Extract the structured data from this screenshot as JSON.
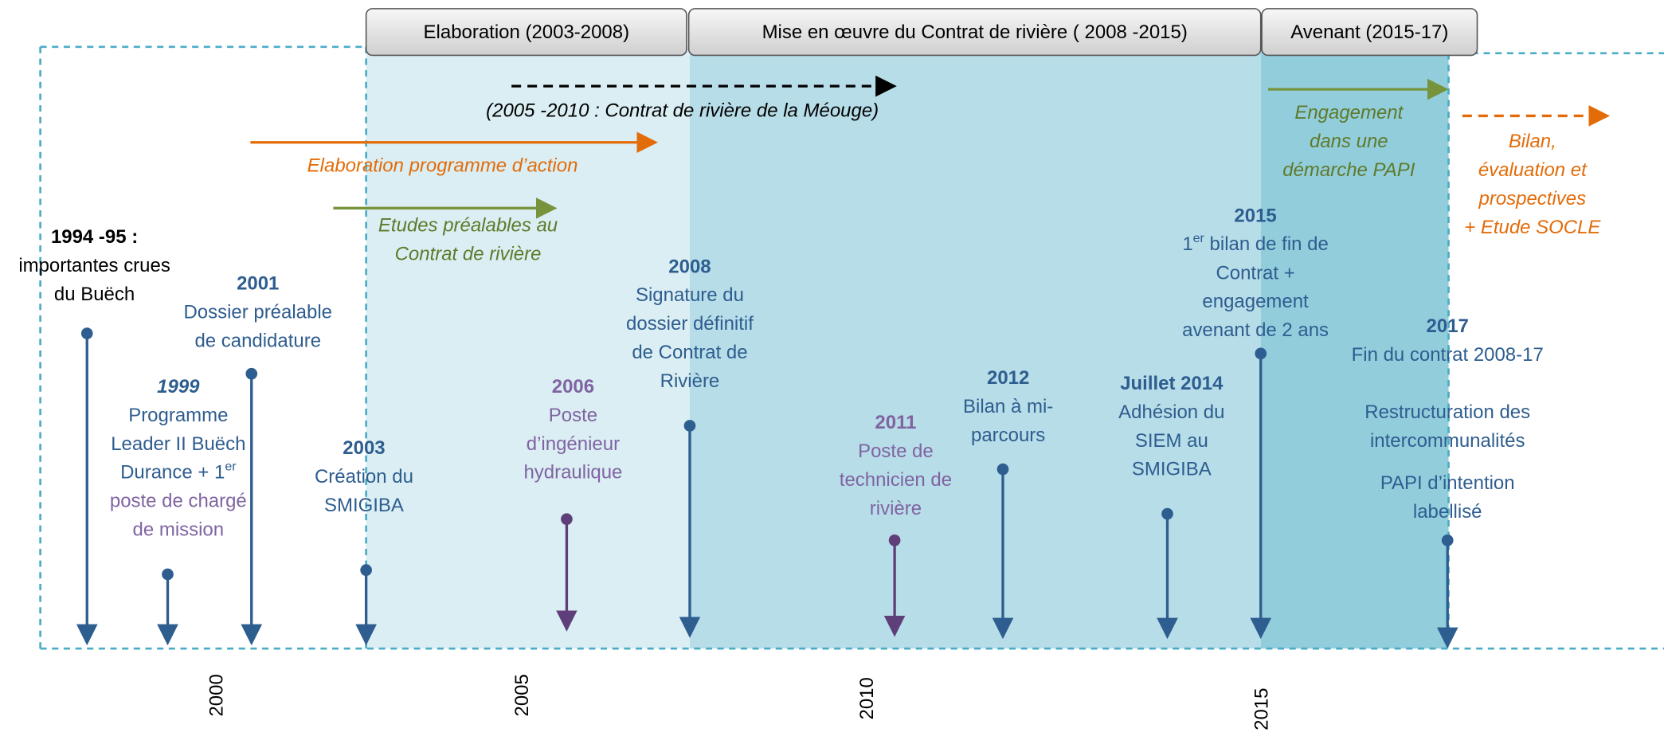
{
  "phases": [
    "Elaboration (2003-2008)",
    "Mise en œuvre du Contrat de rivière ( 2008 -2015)",
    "Avenant (2015-17)"
  ],
  "annotations": [
    {
      "lines": [
        "(2005 -2010 : Contrat de rivière de la Méouge)"
      ]
    },
    {
      "lines": [
        "Elaboration programme d’action"
      ]
    },
    {
      "lines": [
        "Etudes préalables au",
        "Contrat de rivière"
      ]
    },
    {
      "lines": [
        "Engagement",
        "dans une",
        "démarche PAPI"
      ]
    },
    {
      "lines": [
        "Bilan,",
        "évaluation et",
        "prospectives",
        "+ Etude SOCLE"
      ]
    }
  ],
  "events": [
    {
      "year": "1994 -95 :",
      "lines": [
        "importantes crues",
        "du Buëch"
      ]
    },
    {
      "year": "2001",
      "lines": [
        "Dossier préalable",
        "de candidature"
      ]
    },
    {
      "year": "1999",
      "lines": [
        "Programme",
        "Leader II Buëch",
        [
          "Durance + 1",
          "er"
        ],
        "poste de chargé",
        "de mission"
      ]
    },
    {
      "year": "2003",
      "lines": [
        "Création du",
        "SMIGIBA"
      ]
    },
    {
      "year": "2006",
      "lines": [
        "Poste",
        "d’ingénieur",
        "hydraulique"
      ]
    },
    {
      "year": "2008",
      "lines": [
        "Signature du",
        "dossier définitif",
        "de Contrat de",
        "Rivière"
      ]
    },
    {
      "year": "2011",
      "lines": [
        "Poste de",
        "technicien de",
        "rivière"
      ]
    },
    {
      "year": "2012",
      "lines": [
        "Bilan à mi-",
        "parcours"
      ]
    },
    {
      "year": "Juillet 2014",
      "lines": [
        "Adhésion du",
        "SIEM au",
        "SMIGIBA"
      ]
    },
    {
      "year": "2015",
      "lines": [
        [
          "1",
          "er",
          "bilan de fin de"
        ],
        "Contrat +",
        "engagement",
        "avenant de 2 ans"
      ]
    },
    {
      "year": "2017",
      "lines": [
        "Fin du contrat 2008-17",
        "",
        "Restructuration des",
        "intercommunalités",
        "PAPI d’intention",
        "labellisé"
      ]
    }
  ],
  "axis_labels": [
    "2000",
    "2005",
    "2010",
    "2015"
  ]
}
